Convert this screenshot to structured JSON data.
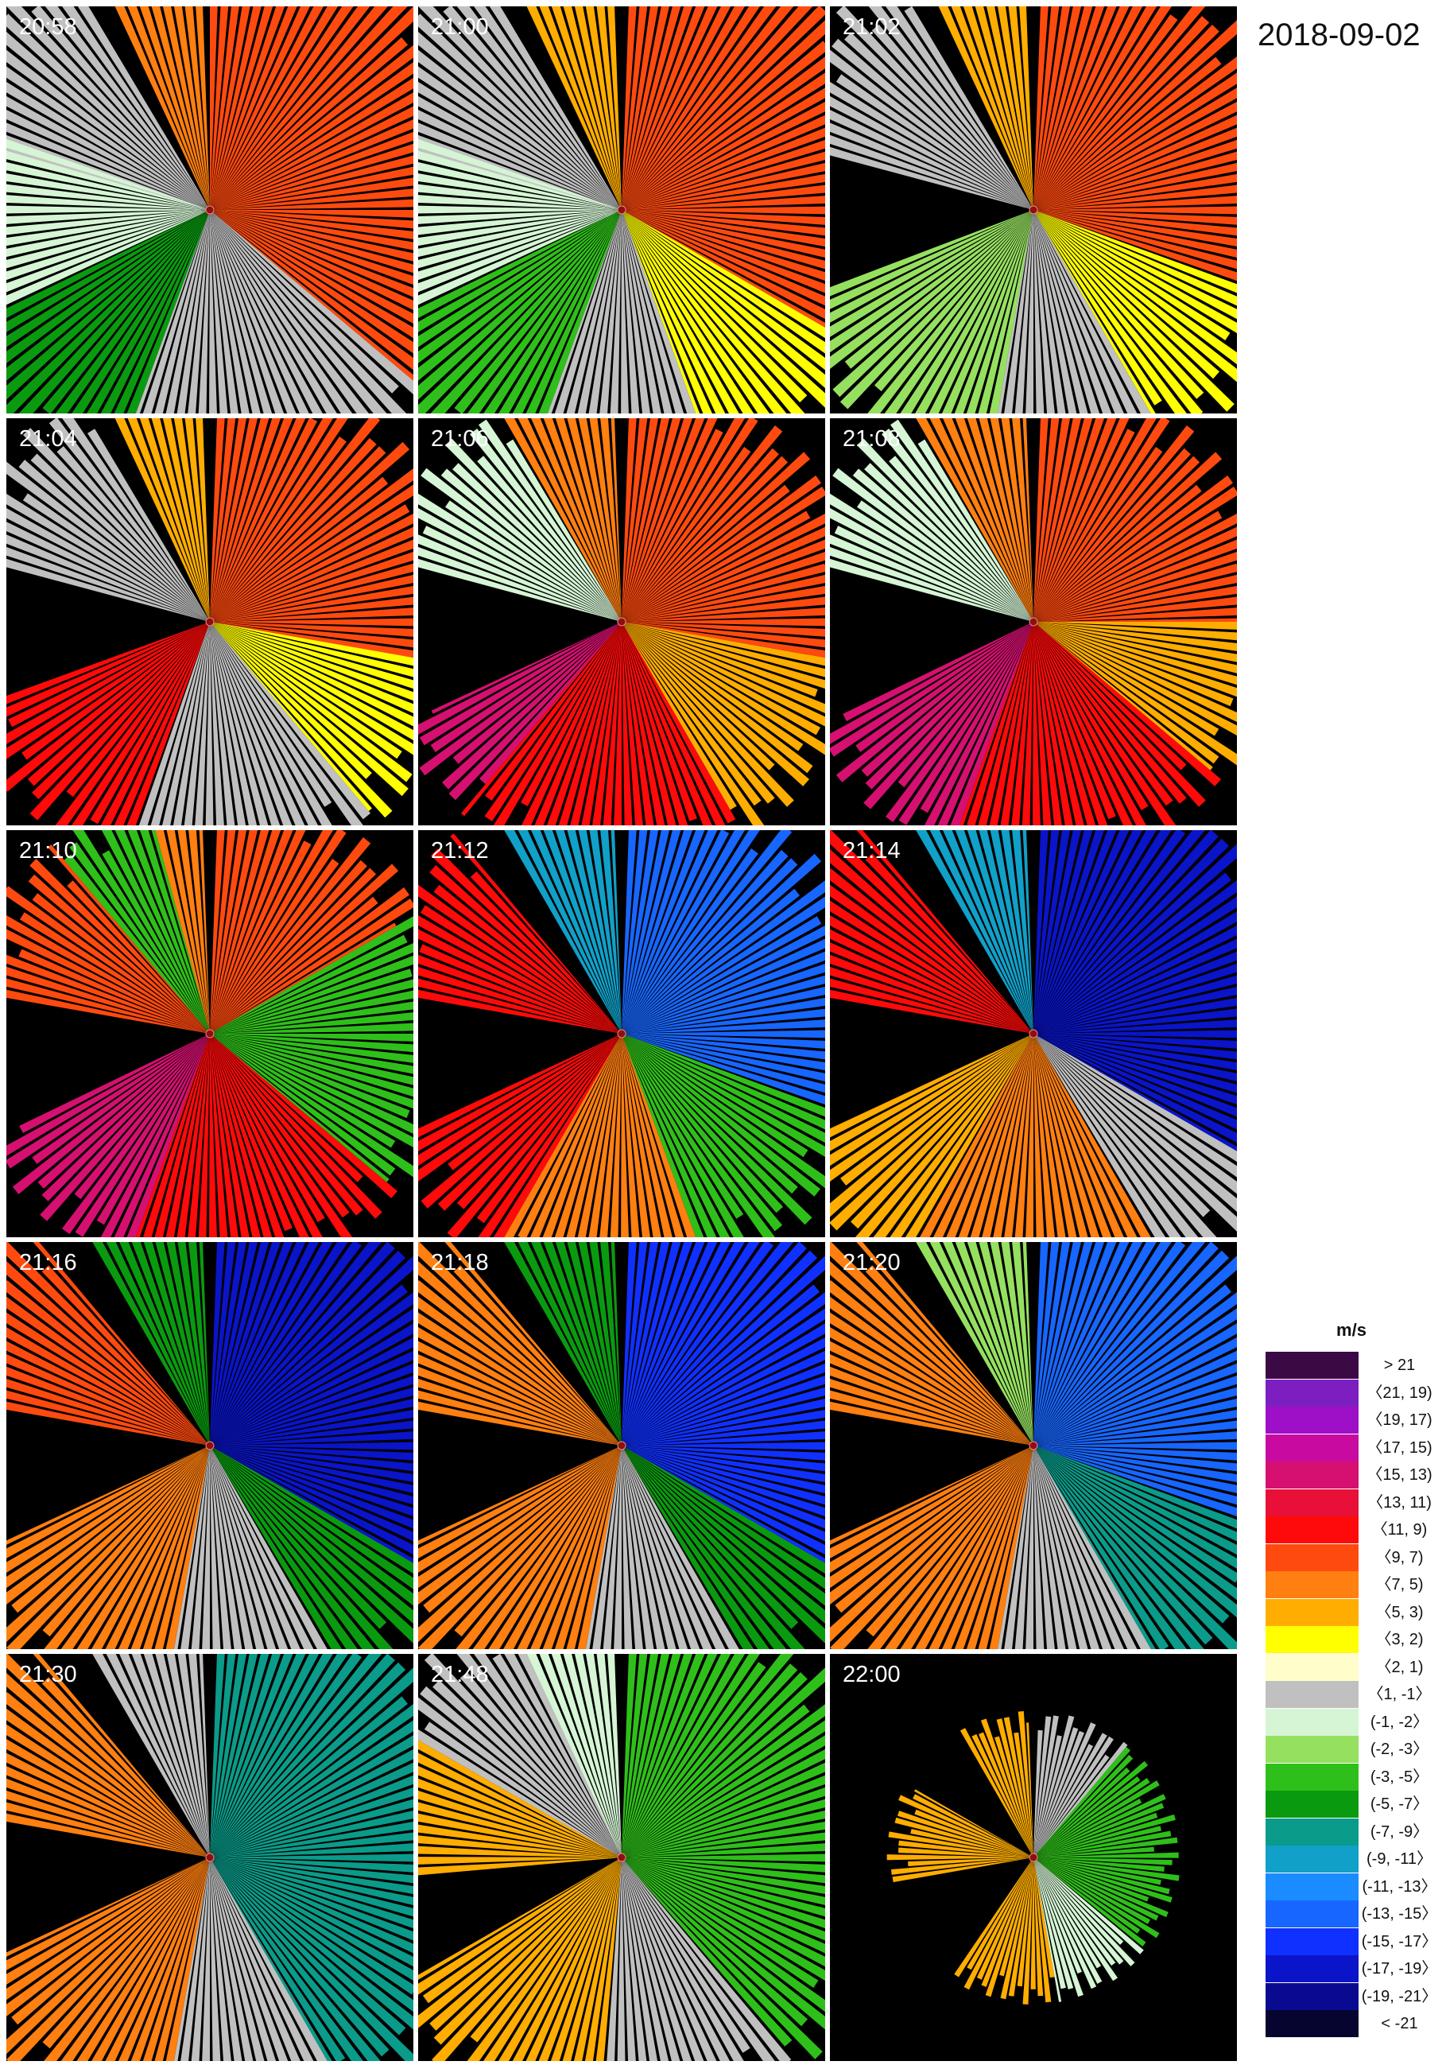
{
  "date": "2018-09-02",
  "legend": {
    "unit": "m/s",
    "entries": [
      {
        "label": "> 21",
        "color": "#3b0a45"
      },
      {
        "label": "〈21, 19)",
        "color": "#7d1fc0"
      },
      {
        "label": "〈19, 17)",
        "color": "#9d10c8"
      },
      {
        "label": "〈17, 15)",
        "color": "#c90aa0"
      },
      {
        "label": "〈15, 13)",
        "color": "#d51070"
      },
      {
        "label": "〈13, 11)",
        "color": "#e81038"
      },
      {
        "label": "〈11, 9)",
        "color": "#ff0a0a"
      },
      {
        "label": "〈9, 7)",
        "color": "#ff4a0f"
      },
      {
        "label": "〈7, 5)",
        "color": "#ff7f10"
      },
      {
        "label": "〈5, 3)",
        "color": "#ffad00"
      },
      {
        "label": "〈3, 2)",
        "color": "#ffff00"
      },
      {
        "label": "〈2, 1)",
        "color": "#fffdc9"
      },
      {
        "label": "〈1, -1〉",
        "color": "#c0c0c0"
      },
      {
        "label": "(-1, -2〉",
        "color": "#d5f5d5"
      },
      {
        "label": "(-2, -3〉",
        "color": "#96e060"
      },
      {
        "label": "(-3, -5〉",
        "color": "#2fbf1a"
      },
      {
        "label": "(-5, -7〉",
        "color": "#0a9a10"
      },
      {
        "label": "(-7, -9〉",
        "color": "#0a9b8a"
      },
      {
        "label": "(-9, -11〉",
        "color": "#10a0c8"
      },
      {
        "label": "(-11, -13〉",
        "color": "#1a8cff"
      },
      {
        "label": "(-13, -15〉",
        "color": "#1766ff"
      },
      {
        "label": "(-15, -17〉",
        "color": "#1030ff"
      },
      {
        "label": "(-17, -19〉",
        "color": "#0a14c8"
      },
      {
        "label": "(-19, -21〉",
        "color": "#0a0a90"
      },
      {
        "label": "< -21",
        "color": "#050530"
      }
    ]
  },
  "chart_data": {
    "type": "heatmap",
    "description_kind": "Doppler radial velocity PPI sequence",
    "panels": [
      {
        "time": "20:58",
        "sectors": [
          {
            "from": 285,
            "to": 330,
            "class": 12
          },
          {
            "from": 335,
            "to": 358,
            "class": 8
          },
          {
            "from": 0,
            "to": 130,
            "class": 7
          },
          {
            "from": 130,
            "to": 200,
            "class": 12
          },
          {
            "from": 200,
            "to": 245,
            "class": 16
          },
          {
            "from": 245,
            "to": 290,
            "class": 13
          }
        ],
        "reach": 1.05
      },
      {
        "time": "21:00",
        "sectors": [
          {
            "from": 285,
            "to": 330,
            "class": 12
          },
          {
            "from": 335,
            "to": 358,
            "class": 9
          },
          {
            "from": 2,
            "to": 120,
            "class": 7
          },
          {
            "from": 120,
            "to": 160,
            "class": 10
          },
          {
            "from": 160,
            "to": 200,
            "class": 12
          },
          {
            "from": 200,
            "to": 245,
            "class": 15
          },
          {
            "from": 245,
            "to": 290,
            "class": 13
          }
        ],
        "reach": 1.05
      },
      {
        "time": "21:02",
        "sectors": [
          {
            "from": 285,
            "to": 330,
            "class": 12
          },
          {
            "from": 335,
            "to": 358,
            "class": 9
          },
          {
            "from": 2,
            "to": 110,
            "class": 7
          },
          {
            "from": 110,
            "to": 150,
            "class": 10
          },
          {
            "from": 150,
            "to": 190,
            "class": 12
          },
          {
            "from": 190,
            "to": 250,
            "class": 14
          }
        ],
        "reach": 0.95
      },
      {
        "time": "21:04",
        "sectors": [
          {
            "from": 285,
            "to": 330,
            "class": 12
          },
          {
            "from": 335,
            "to": 358,
            "class": 9
          },
          {
            "from": 2,
            "to": 100,
            "class": 7
          },
          {
            "from": 100,
            "to": 140,
            "class": 10
          },
          {
            "from": 140,
            "to": 200,
            "class": 12
          },
          {
            "from": 200,
            "to": 250,
            "class": 6
          }
        ],
        "reach": 0.9
      },
      {
        "time": "21:06",
        "sectors": [
          {
            "from": 285,
            "to": 330,
            "class": 13
          },
          {
            "from": 330,
            "to": 358,
            "class": 8
          },
          {
            "from": 2,
            "to": 100,
            "class": 7
          },
          {
            "from": 100,
            "to": 150,
            "class": 9
          },
          {
            "from": 150,
            "to": 220,
            "class": 6
          },
          {
            "from": 220,
            "to": 245,
            "class": 4
          }
        ],
        "reach": 0.85
      },
      {
        "time": "21:08",
        "sectors": [
          {
            "from": 285,
            "to": 330,
            "class": 13
          },
          {
            "from": 330,
            "to": 358,
            "class": 8
          },
          {
            "from": 2,
            "to": 90,
            "class": 7
          },
          {
            "from": 90,
            "to": 130,
            "class": 9
          },
          {
            "from": 130,
            "to": 200,
            "class": 6
          },
          {
            "from": 200,
            "to": 245,
            "class": 4
          }
        ],
        "reach": 0.85
      },
      {
        "time": "21:10",
        "sectors": [
          {
            "from": 280,
            "to": 320,
            "class": 7
          },
          {
            "from": 320,
            "to": 345,
            "class": 15
          },
          {
            "from": 345,
            "to": 358,
            "class": 8
          },
          {
            "from": 2,
            "to": 60,
            "class": 7
          },
          {
            "from": 60,
            "to": 130,
            "class": 15
          },
          {
            "from": 130,
            "to": 200,
            "class": 6
          },
          {
            "from": 200,
            "to": 245,
            "class": 4
          }
        ],
        "reach": 0.85
      },
      {
        "time": "21:12",
        "sectors": [
          {
            "from": 280,
            "to": 320,
            "class": 6
          },
          {
            "from": 330,
            "to": 358,
            "class": 18
          },
          {
            "from": 2,
            "to": 110,
            "class": 20
          },
          {
            "from": 110,
            "to": 160,
            "class": 15
          },
          {
            "from": 160,
            "to": 210,
            "class": 8
          },
          {
            "from": 210,
            "to": 245,
            "class": 6
          }
        ],
        "reach": 0.9
      },
      {
        "time": "21:14",
        "sectors": [
          {
            "from": 280,
            "to": 320,
            "class": 6
          },
          {
            "from": 330,
            "to": 358,
            "class": 18
          },
          {
            "from": 2,
            "to": 120,
            "class": 22
          },
          {
            "from": 120,
            "to": 150,
            "class": 12
          },
          {
            "from": 150,
            "to": 210,
            "class": 8
          },
          {
            "from": 210,
            "to": 245,
            "class": 9
          }
        ],
        "reach": 1.0
      },
      {
        "time": "21:16",
        "sectors": [
          {
            "from": 280,
            "to": 320,
            "class": 7
          },
          {
            "from": 330,
            "to": 358,
            "class": 16
          },
          {
            "from": 2,
            "to": 120,
            "class": 22
          },
          {
            "from": 120,
            "to": 150,
            "class": 16
          },
          {
            "from": 150,
            "to": 190,
            "class": 12
          },
          {
            "from": 190,
            "to": 245,
            "class": 8
          }
        ],
        "reach": 1.0
      },
      {
        "time": "21:18",
        "sectors": [
          {
            "from": 280,
            "to": 320,
            "class": 8
          },
          {
            "from": 330,
            "to": 358,
            "class": 16
          },
          {
            "from": 2,
            "to": 120,
            "class": 21
          },
          {
            "from": 120,
            "to": 150,
            "class": 16
          },
          {
            "from": 150,
            "to": 190,
            "class": 12
          },
          {
            "from": 190,
            "to": 245,
            "class": 8
          }
        ],
        "reach": 1.0
      },
      {
        "time": "21:20",
        "sectors": [
          {
            "from": 280,
            "to": 320,
            "class": 8
          },
          {
            "from": 330,
            "to": 358,
            "class": 14
          },
          {
            "from": 2,
            "to": 110,
            "class": 20
          },
          {
            "from": 110,
            "to": 150,
            "class": 17
          },
          {
            "from": 150,
            "to": 190,
            "class": 12
          },
          {
            "from": 190,
            "to": 245,
            "class": 8
          }
        ],
        "reach": 1.0
      },
      {
        "time": "21:30",
        "sectors": [
          {
            "from": 280,
            "to": 320,
            "class": 8
          },
          {
            "from": 330,
            "to": 358,
            "class": 12
          },
          {
            "from": 2,
            "to": 150,
            "class": 17
          },
          {
            "from": 150,
            "to": 190,
            "class": 12
          },
          {
            "from": 190,
            "to": 245,
            "class": 8
          }
        ],
        "reach": 1.0
      },
      {
        "time": "21:48",
        "sectors": [
          {
            "from": 265,
            "to": 300,
            "class": 9
          },
          {
            "from": 300,
            "to": 335,
            "class": 12
          },
          {
            "from": 335,
            "to": 358,
            "class": 13
          },
          {
            "from": 2,
            "to": 140,
            "class": 15
          },
          {
            "from": 140,
            "to": 185,
            "class": 12
          },
          {
            "from": 185,
            "to": 240,
            "class": 9
          }
        ],
        "reach": 0.95
      },
      {
        "time": "22:00",
        "sectors": [
          {
            "from": 260,
            "to": 300,
            "class": 9
          },
          {
            "from": 330,
            "to": 358,
            "class": 9
          },
          {
            "from": 2,
            "to": 40,
            "class": 12
          },
          {
            "from": 40,
            "to": 130,
            "class": 15
          },
          {
            "from": 130,
            "to": 170,
            "class": 13
          },
          {
            "from": 170,
            "to": 215,
            "class": 9
          }
        ],
        "reach": 0.5
      }
    ]
  }
}
